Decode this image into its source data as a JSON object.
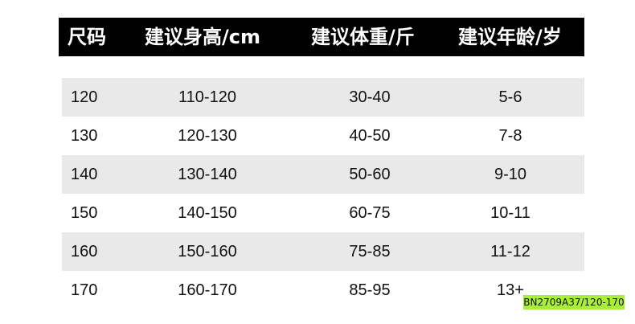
{
  "header": [
    "尺码",
    "建议身高/cm",
    "建议体重/斤",
    "建议年龄/岁"
  ],
  "rows": [
    [
      "120",
      "110-120",
      "30-40",
      "5-6"
    ],
    [
      "130",
      "120-130",
      "40-50",
      "7-8"
    ],
    [
      "140",
      "130-140",
      "50-60",
      "9-10"
    ],
    [
      "150",
      "140-150",
      "60-75",
      "10-11"
    ],
    [
      "160",
      "150-160",
      "75-85",
      "11-12"
    ],
    [
      "170",
      "160-170",
      "85-95",
      "13+"
    ]
  ],
  "tag": "BN2709A37/120-170",
  "colors": {
    "header_bg": "#000000",
    "stripe": "#e9e9e9",
    "tag_bg": "#a8ee3a"
  }
}
